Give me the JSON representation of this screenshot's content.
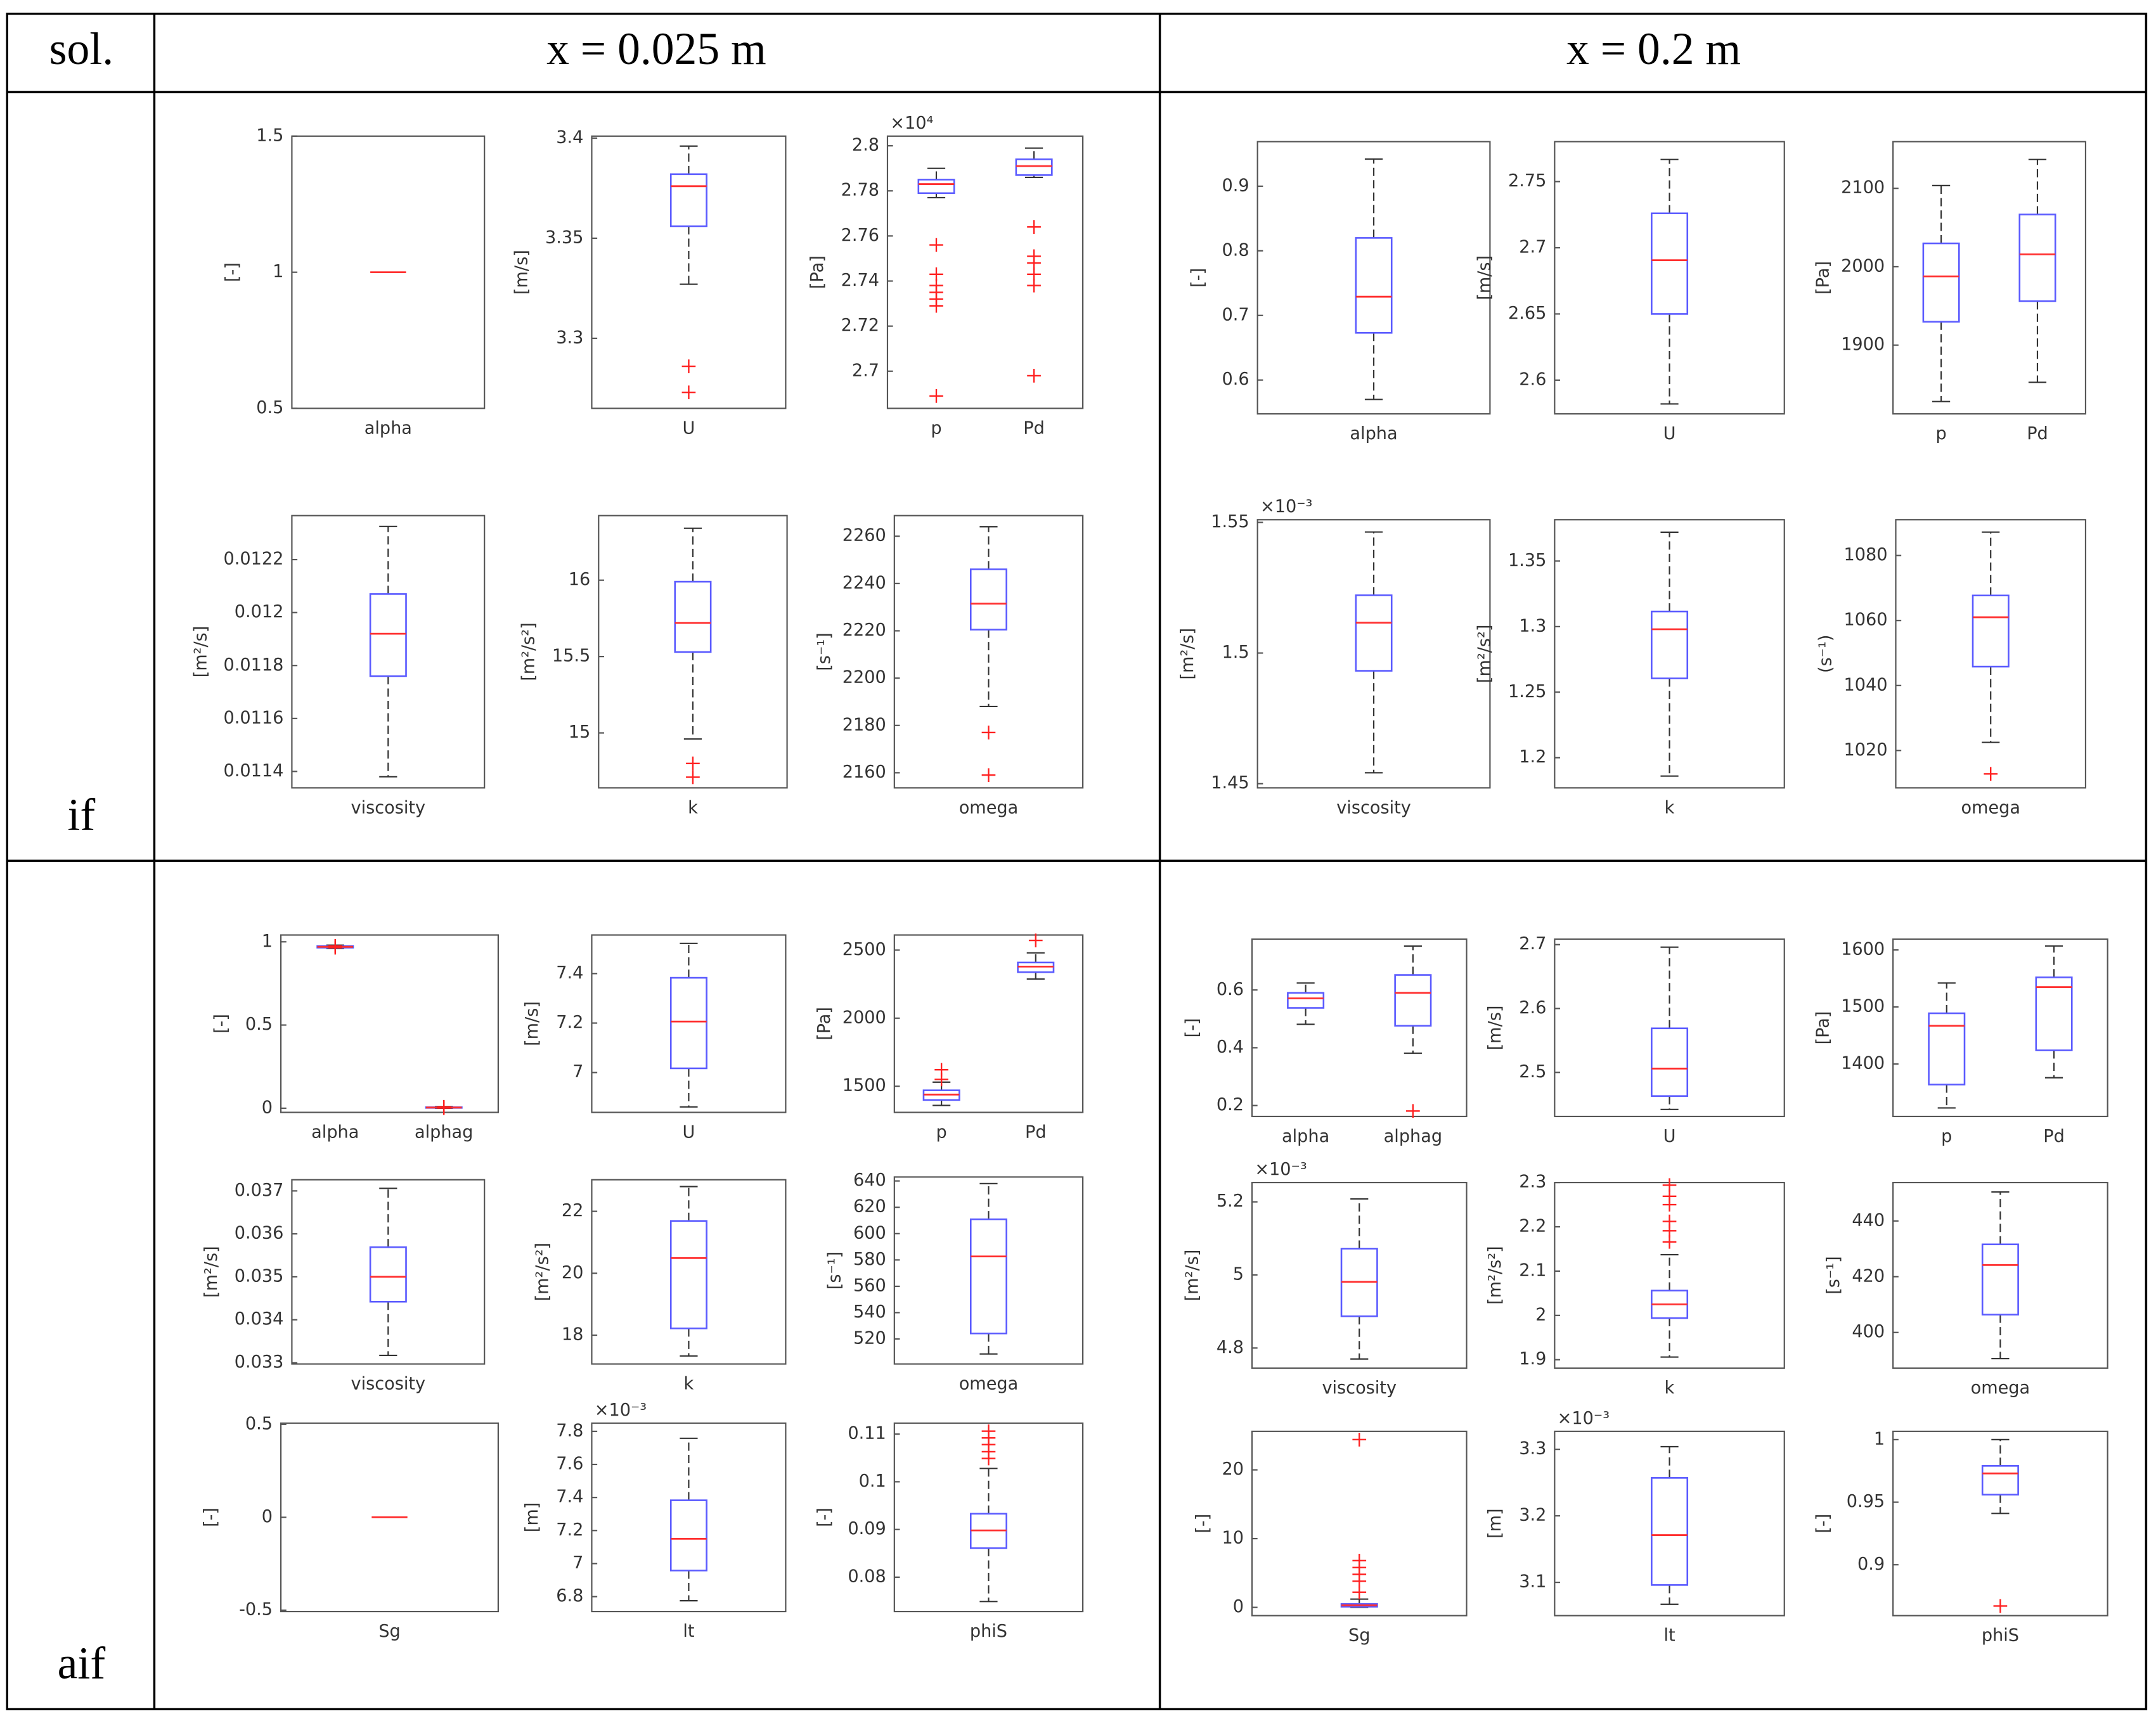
{
  "table": {
    "header": [
      "sol.",
      "x = 0.025 m",
      "x = 0.2 m"
    ],
    "rows": [
      "if",
      "aif"
    ]
  },
  "colors": {
    "box": "#5b5bff",
    "median": "#ff3030",
    "whisker": "#333333",
    "flier": "#ff2020"
  },
  "chart_data": [
    {
      "type": "box",
      "ylabel": "[-]",
      "categories": [
        "alpha"
      ],
      "ylim": [
        0.5,
        1.5
      ],
      "yticks": [
        0.5,
        1,
        1.5
      ],
      "boxes": [
        {
          "whislo": 1,
          "q1": 1,
          "med": 1,
          "q3": 1,
          "whishi": 1,
          "fliers": []
        }
      ]
    },
    {
      "type": "box",
      "ylabel": "[m/s]",
      "categories": [
        "U"
      ],
      "ylim": [
        3.265,
        3.401
      ],
      "yticks": [
        3.3,
        3.35,
        3.4
      ],
      "boxes": [
        {
          "whislo": 3.327,
          "q1": 3.356,
          "med": 3.376,
          "q3": 3.382,
          "whishi": 3.396,
          "fliers": [
            3.286,
            3.273
          ]
        }
      ]
    },
    {
      "type": "box",
      "ylabel": "[Pa]",
      "y_multiplier": "×10⁴",
      "categories": [
        "p",
        "Pd"
      ],
      "ylim": [
        2.6835,
        2.8043
      ],
      "yticks": [
        2.7,
        2.72,
        2.74,
        2.76,
        2.78,
        2.8
      ],
      "boxes": [
        {
          "whislo": 2.777,
          "q1": 2.779,
          "med": 2.783,
          "q3": 2.785,
          "whishi": 2.79,
          "fliers": [
            2.756,
            2.743,
            2.738,
            2.735,
            2.732,
            2.729,
            2.689
          ]
        },
        {
          "whislo": 2.786,
          "q1": 2.787,
          "med": 2.791,
          "q3": 2.794,
          "whishi": 2.799,
          "fliers": [
            2.764,
            2.751,
            2.748,
            2.743,
            2.738,
            2.698
          ]
        }
      ]
    },
    {
      "type": "box",
      "ylabel": "[m²/s]",
      "categories": [
        "viscosity"
      ],
      "ylim": [
        0.011338,
        0.012366
      ],
      "yticks": [
        0.0114,
        0.0116,
        0.0118,
        0.012,
        0.0122
      ],
      "boxes": [
        {
          "whislo": 0.01138,
          "q1": 0.01176,
          "med": 0.01192,
          "q3": 0.01207,
          "whishi": 0.012325,
          "fliers": []
        }
      ]
    },
    {
      "type": "box",
      "ylabel": "[m²/s²]",
      "categories": [
        "k"
      ],
      "ylim": [
        14.64,
        16.423
      ],
      "yticks": [
        15,
        15.5,
        16
      ],
      "boxes": [
        {
          "whislo": 14.96,
          "q1": 15.53,
          "med": 15.72,
          "q3": 15.99,
          "whishi": 16.34,
          "fliers": [
            14.8,
            14.71
          ]
        }
      ]
    },
    {
      "type": "box",
      "ylabel": "[s⁻¹]",
      "categories": [
        "omega"
      ],
      "ylim": [
        2153.6,
        2268.7
      ],
      "yticks": [
        2160,
        2180,
        2200,
        2220,
        2240,
        2260
      ],
      "boxes": [
        {
          "whislo": 2188,
          "q1": 2220.5,
          "med": 2231.5,
          "q3": 2246,
          "whishi": 2264,
          "fliers": [
            2177,
            2159
          ]
        }
      ]
    },
    {
      "type": "box",
      "ylabel": "[-]",
      "categories": [
        "alpha"
      ],
      "ylim": [
        0.5476,
        0.969
      ],
      "yticks": [
        0.6,
        0.7,
        0.8,
        0.9
      ],
      "boxes": [
        {
          "whislo": 0.57,
          "q1": 0.673,
          "med": 0.729,
          "q3": 0.82,
          "whishi": 0.942,
          "fliers": []
        }
      ]
    },
    {
      "type": "box",
      "ylabel": "[m/s]",
      "categories": [
        "U"
      ],
      "ylim": [
        2.5745,
        2.7802
      ],
      "yticks": [
        2.6,
        2.65,
        2.7,
        2.75
      ],
      "boxes": [
        {
          "whislo": 2.582,
          "q1": 2.65,
          "med": 2.6906,
          "q3": 2.726,
          "whishi": 2.7667,
          "fliers": []
        }
      ]
    },
    {
      "type": "box",
      "ylabel": "[Pa]",
      "categories": [
        "p",
        "Pd"
      ],
      "ylim": [
        1812.3,
        2159.6
      ],
      "yticks": [
        1900,
        2000,
        2100
      ],
      "boxes": [
        {
          "whislo": 1828,
          "q1": 1929.8,
          "med": 1987.7,
          "q3": 2029.8,
          "whishi": 2103.5,
          "fliers": []
        },
        {
          "whislo": 1852.6,
          "q1": 1956,
          "med": 2015.8,
          "q3": 2066.7,
          "whishi": 2136.8,
          "fliers": []
        }
      ]
    },
    {
      "type": "box",
      "ylabel": "[m²/s]",
      "y_multiplier": "×10⁻³",
      "categories": [
        "viscosity"
      ],
      "ylim": [
        1.4484,
        1.551
      ],
      "yticks": [
        1.45,
        1.5,
        1.55
      ],
      "boxes": [
        {
          "whislo": 1.4542,
          "q1": 1.4932,
          "med": 1.5116,
          "q3": 1.5221,
          "whishi": 1.5463,
          "fliers": []
        }
      ]
    },
    {
      "type": "box",
      "ylabel": "[m²/s²]",
      "categories": [
        "k"
      ],
      "ylim": [
        1.177,
        1.3815
      ],
      "yticks": [
        1.2,
        1.25,
        1.3,
        1.35
      ],
      "boxes": [
        {
          "whislo": 1.186,
          "q1": 1.2605,
          "med": 1.298,
          "q3": 1.3115,
          "whishi": 1.372,
          "fliers": []
        }
      ]
    },
    {
      "type": "box",
      "ylabel": "(s⁻¹)",
      "categories": [
        "omega"
      ],
      "ylim": [
        1008.5,
        1091
      ],
      "yticks": [
        1020,
        1040,
        1060,
        1080
      ],
      "boxes": [
        {
          "whislo": 1022.5,
          "q1": 1045.8,
          "med": 1061,
          "q3": 1067.7,
          "whishi": 1087.2,
          "fliers": [
            1012.8
          ]
        }
      ]
    },
    {
      "type": "box",
      "ylabel": "[-]",
      "categories": [
        "alpha",
        "alphag"
      ],
      "ylim": [
        -0.025,
        1.041
      ],
      "yticks": [
        0,
        0.5,
        1
      ],
      "boxes": [
        {
          "whislo": 0.96,
          "q1": 0.965,
          "med": 0.97,
          "q3": 0.975,
          "whishi": 0.98,
          "fliers": [
            0.965,
            0.975
          ]
        },
        {
          "whislo": 0,
          "q1": 0.002,
          "med": 0.004,
          "q3": 0.006,
          "whishi": 0.01,
          "fliers": [
            0.001,
            0.008
          ]
        }
      ]
    },
    {
      "type": "box",
      "ylabel": "[m/s]",
      "categories": [
        "U"
      ],
      "ylim": [
        6.839,
        7.556
      ],
      "yticks": [
        7,
        7.2,
        7.4
      ],
      "boxes": [
        {
          "whislo": 6.861,
          "q1": 7.017,
          "med": 7.206,
          "q3": 7.383,
          "whishi": 7.522,
          "fliers": []
        }
      ]
    },
    {
      "type": "box",
      "ylabel": "[Pa]",
      "categories": [
        "p",
        "Pd"
      ],
      "ylim": [
        1308,
        2611
      ],
      "yticks": [
        1500,
        2000,
        2500
      ],
      "boxes": [
        {
          "whislo": 1359,
          "q1": 1399,
          "med": 1439,
          "q3": 1470,
          "whishi": 1530,
          "fliers": [
            1621,
            1550
          ]
        },
        {
          "whislo": 2288,
          "q1": 2338,
          "med": 2379,
          "q3": 2409,
          "whishi": 2480,
          "fliers": [
            2571
          ]
        }
      ]
    },
    {
      "type": "box",
      "ylabel": "[m²/s]",
      "categories": [
        "viscosity"
      ],
      "ylim": [
        0.03297,
        0.03726
      ],
      "yticks": [
        0.033,
        0.034,
        0.035,
        0.036,
        0.037
      ],
      "boxes": [
        {
          "whislo": 0.03317,
          "q1": 0.03442,
          "med": 0.035,
          "q3": 0.03569,
          "whishi": 0.03706,
          "fliers": []
        }
      ]
    },
    {
      "type": "box",
      "ylabel": "[m²/s²]",
      "categories": [
        "k"
      ],
      "ylim": [
        17.07,
        23.02
      ],
      "yticks": [
        18,
        20,
        22
      ],
      "boxes": [
        {
          "whislo": 17.33,
          "q1": 18.22,
          "med": 20.49,
          "q3": 21.69,
          "whishi": 22.8,
          "fliers": []
        }
      ]
    },
    {
      "type": "box",
      "ylabel": "[s⁻¹]",
      "categories": [
        "omega"
      ],
      "ylim": [
        501,
        643
      ],
      "yticks": [
        520,
        540,
        560,
        580,
        600,
        620,
        640
      ],
      "boxes": [
        {
          "whislo": 508.6,
          "q1": 524.2,
          "med": 582.7,
          "q3": 610.9,
          "whishi": 638,
          "fliers": []
        }
      ]
    },
    {
      "type": "box",
      "ylabel": "[-]",
      "categories": [
        "Sg"
      ],
      "ylim": [
        -0.507,
        0.507
      ],
      "yticks": [
        -0.5,
        0,
        0.5
      ],
      "boxes": [
        {
          "whislo": 0,
          "q1": 0,
          "med": 0,
          "q3": 0,
          "whishi": 0,
          "fliers": []
        }
      ]
    },
    {
      "type": "box",
      "ylabel": "[m]",
      "y_multiplier": "×10⁻³",
      "categories": [
        "lt"
      ],
      "ylim": [
        6.71,
        7.85
      ],
      "yticks": [
        6.8,
        7,
        7.2,
        7.4,
        7.6,
        7.8
      ],
      "boxes": [
        {
          "whislo": 6.775,
          "q1": 6.958,
          "med": 7.15,
          "q3": 7.383,
          "whishi": 7.758,
          "fliers": []
        }
      ]
    },
    {
      "type": "box",
      "ylabel": "[-]",
      "categories": [
        "phiS"
      ],
      "ylim": [
        0.0728,
        0.1123
      ],
      "yticks": [
        0.08,
        0.09,
        0.1,
        0.11
      ],
      "boxes": [
        {
          "whislo": 0.0749,
          "q1": 0.0861,
          "med": 0.0898,
          "q3": 0.0933,
          "whishi": 0.1028,
          "fliers": [
            0.1106,
            0.1092,
            0.1078,
            0.1063,
            0.1049
          ]
        }
      ]
    },
    {
      "type": "box",
      "ylabel": "[-]",
      "categories": [
        "alpha",
        "alphag"
      ],
      "ylim": [
        0.162,
        0.776
      ],
      "yticks": [
        0.2,
        0.4,
        0.6
      ],
      "boxes": [
        {
          "whislo": 0.481,
          "q1": 0.538,
          "med": 0.571,
          "q3": 0.59,
          "whishi": 0.624,
          "fliers": []
        },
        {
          "whislo": 0.381,
          "q1": 0.476,
          "med": 0.59,
          "q3": 0.652,
          "whishi": 0.752,
          "fliers": [
            0.181
          ]
        }
      ]
    },
    {
      "type": "box",
      "ylabel": "[m/s]",
      "categories": [
        "U"
      ],
      "ylim": [
        2.431,
        2.7086
      ],
      "yticks": [
        2.5,
        2.6,
        2.7
      ],
      "boxes": [
        {
          "whislo": 2.442,
          "q1": 2.463,
          "med": 2.506,
          "q3": 2.569,
          "whishi": 2.696,
          "fliers": []
        }
      ]
    },
    {
      "type": "box",
      "ylabel": "[Pa]",
      "categories": [
        "p",
        "Pd"
      ],
      "ylim": [
        1308,
        1619
      ],
      "yticks": [
        1400,
        1500,
        1600
      ],
      "boxes": [
        {
          "whislo": 1323,
          "q1": 1364,
          "med": 1467,
          "q3": 1489,
          "whishi": 1542,
          "fliers": []
        },
        {
          "whislo": 1376,
          "q1": 1424,
          "med": 1535,
          "q3": 1552,
          "whishi": 1607,
          "fliers": []
        }
      ]
    },
    {
      "type": "box",
      "ylabel": "[m²/s]",
      "y_multiplier": "×10⁻³",
      "categories": [
        "viscosity"
      ],
      "ylim": [
        4.745,
        5.253
      ],
      "yticks": [
        4.8,
        5,
        5.2
      ],
      "boxes": [
        {
          "whislo": 4.77,
          "q1": 4.887,
          "med": 4.981,
          "q3": 5.072,
          "whishi": 5.208,
          "fliers": []
        }
      ]
    },
    {
      "type": "box",
      "ylabel": "[m²/s²]",
      "categories": [
        "k"
      ],
      "ylim": [
        1.881,
        2.3
      ],
      "yticks": [
        1.9,
        2,
        2.1,
        2.2,
        2.3
      ],
      "boxes": [
        {
          "whislo": 1.906,
          "q1": 1.994,
          "med": 2.025,
          "q3": 2.056,
          "whishi": 2.137,
          "fliers": [
            2.294,
            2.269,
            2.25,
            2.212,
            2.191,
            2.166
          ]
        }
      ]
    },
    {
      "type": "box",
      "ylabel": "[s⁻¹]",
      "categories": [
        "omega"
      ],
      "ylim": [
        387.2,
        453.8
      ],
      "yticks": [
        400,
        420,
        440
      ],
      "boxes": [
        {
          "whislo": 390.6,
          "q1": 406.4,
          "med": 424.2,
          "q3": 431.6,
          "whishi": 450.4,
          "fliers": []
        }
      ]
    },
    {
      "type": "box",
      "ylabel": "[-]",
      "categories": [
        "Sg"
      ],
      "ylim": [
        -1.2,
        25.6
      ],
      "yticks": [
        0,
        10,
        20
      ],
      "boxes": [
        {
          "whislo": 0,
          "q1": 0.1,
          "med": 0.3,
          "q3": 0.5,
          "whishi": 1.2,
          "fliers": [
            24.4,
            6.8,
            5.8,
            4.8,
            3.8,
            2.2
          ]
        }
      ]
    },
    {
      "type": "box",
      "ylabel": "[m]",
      "y_multiplier": "×10⁻³",
      "categories": [
        "lt"
      ],
      "ylim": [
        3.05,
        3.327
      ],
      "yticks": [
        3.1,
        3.2,
        3.3
      ],
      "boxes": [
        {
          "whislo": 3.067,
          "q1": 3.096,
          "med": 3.171,
          "q3": 3.257,
          "whishi": 3.304,
          "fliers": []
        }
      ]
    },
    {
      "type": "box",
      "ylabel": "[-]",
      "categories": [
        "phiS"
      ],
      "ylim": [
        0.8593,
        1.0066
      ],
      "yticks": [
        0.9,
        0.95,
        1
      ],
      "boxes": [
        {
          "whislo": 0.941,
          "q1": 0.956,
          "med": 0.973,
          "q3": 0.979,
          "whishi": 1,
          "fliers": [
            0.867
          ]
        }
      ]
    }
  ]
}
